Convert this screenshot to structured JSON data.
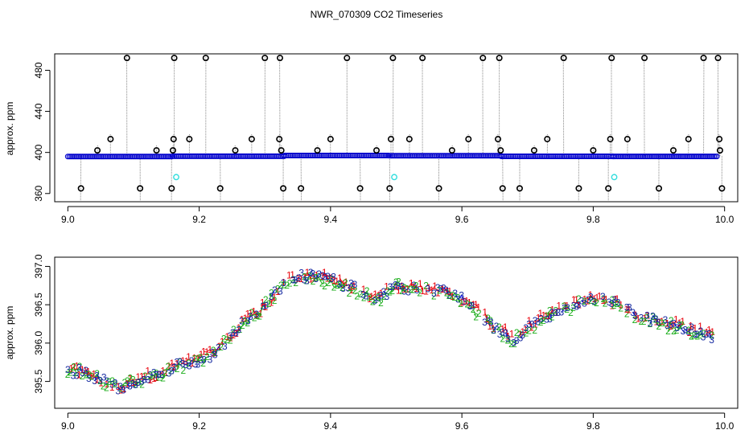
{
  "title": "NWR_070309  CO2 Timeseries",
  "colors": {
    "s1": "#e8000b",
    "s2": "#1aad19",
    "s3": "#1428a0",
    "connect": "#0000ff",
    "raw_line": "#888888",
    "raw_dot": "#0000cc",
    "outlier": "#000000",
    "flagged": "#33dddd"
  },
  "chart_data": [
    {
      "type": "scatter",
      "name": "raw",
      "ylabel": "approx. ppm",
      "xlim": [
        8.98,
        10.02
      ],
      "ylim": [
        352,
        496
      ],
      "xticks": [
        9.0,
        9.2,
        9.4,
        9.6,
        9.8,
        10.0
      ],
      "xtick_labels": [
        "9.0",
        "9.2",
        "9.4",
        "9.6",
        "9.8",
        "10.0"
      ],
      "yticks": [
        360,
        400,
        440,
        480
      ],
      "ytick_labels": [
        "360",
        "400",
        "440",
        "480"
      ],
      "baseline_segments": [
        {
          "x0": 9.0,
          "x1": 9.16,
          "y": 396
        },
        {
          "x0": 9.16,
          "x1": 9.33,
          "y": 396.3
        },
        {
          "x0": 9.33,
          "x1": 9.49,
          "y": 397
        },
        {
          "x0": 9.49,
          "x1": 9.66,
          "y": 396.8
        },
        {
          "x0": 9.66,
          "x1": 9.83,
          "y": 396.2
        },
        {
          "x0": 9.83,
          "x1": 9.99,
          "y": 396.1
        }
      ],
      "outliers": [
        {
          "x": 9.02,
          "y": 365
        },
        {
          "x": 9.045,
          "y": 402
        },
        {
          "x": 9.065,
          "y": 413
        },
        {
          "x": 9.09,
          "y": 492
        },
        {
          "x": 9.11,
          "y": 365
        },
        {
          "x": 9.135,
          "y": 402
        },
        {
          "x": 9.158,
          "y": 365
        },
        {
          "x": 9.16,
          "y": 402
        },
        {
          "x": 9.161,
          "y": 413
        },
        {
          "x": 9.162,
          "y": 492
        },
        {
          "x": 9.185,
          "y": 413
        },
        {
          "x": 9.21,
          "y": 492
        },
        {
          "x": 9.232,
          "y": 365
        },
        {
          "x": 9.255,
          "y": 402
        },
        {
          "x": 9.28,
          "y": 413
        },
        {
          "x": 9.3,
          "y": 492
        },
        {
          "x": 9.322,
          "y": 413
        },
        {
          "x": 9.323,
          "y": 492
        },
        {
          "x": 9.325,
          "y": 402
        },
        {
          "x": 9.328,
          "y": 365
        },
        {
          "x": 9.355,
          "y": 365
        },
        {
          "x": 9.38,
          "y": 402
        },
        {
          "x": 9.4,
          "y": 413
        },
        {
          "x": 9.425,
          "y": 492
        },
        {
          "x": 9.445,
          "y": 365
        },
        {
          "x": 9.47,
          "y": 402
        },
        {
          "x": 9.49,
          "y": 365
        },
        {
          "x": 9.492,
          "y": 413
        },
        {
          "x": 9.495,
          "y": 492
        },
        {
          "x": 9.52,
          "y": 413
        },
        {
          "x": 9.54,
          "y": 492
        },
        {
          "x": 9.565,
          "y": 365
        },
        {
          "x": 9.585,
          "y": 402
        },
        {
          "x": 9.61,
          "y": 413
        },
        {
          "x": 9.632,
          "y": 492
        },
        {
          "x": 9.655,
          "y": 413
        },
        {
          "x": 9.657,
          "y": 492
        },
        {
          "x": 9.659,
          "y": 402
        },
        {
          "x": 9.662,
          "y": 365
        },
        {
          "x": 9.688,
          "y": 365
        },
        {
          "x": 9.71,
          "y": 402
        },
        {
          "x": 9.73,
          "y": 413
        },
        {
          "x": 9.755,
          "y": 492
        },
        {
          "x": 9.778,
          "y": 365
        },
        {
          "x": 9.8,
          "y": 402
        },
        {
          "x": 9.823,
          "y": 365
        },
        {
          "x": 9.826,
          "y": 413
        },
        {
          "x": 9.828,
          "y": 492
        },
        {
          "x": 9.852,
          "y": 413
        },
        {
          "x": 9.878,
          "y": 492
        },
        {
          "x": 9.9,
          "y": 365
        },
        {
          "x": 9.922,
          "y": 402
        },
        {
          "x": 9.945,
          "y": 413
        },
        {
          "x": 9.968,
          "y": 492
        },
        {
          "x": 9.99,
          "y": 492
        },
        {
          "x": 9.992,
          "y": 413
        },
        {
          "x": 9.993,
          "y": 402
        },
        {
          "x": 9.996,
          "y": 365
        }
      ],
      "flagged": [
        {
          "x": 9.165,
          "y": 376
        },
        {
          "x": 9.497,
          "y": 376
        },
        {
          "x": 9.832,
          "y": 376
        }
      ]
    },
    {
      "type": "scatter",
      "name": "smoothed",
      "ylabel": "approx. ppm",
      "xlim": [
        8.98,
        10.02
      ],
      "ylim": [
        395.15,
        397.12
      ],
      "xticks": [
        9.0,
        9.2,
        9.4,
        9.6,
        9.8,
        10.0
      ],
      "xtick_labels": [
        "9.0",
        "9.2",
        "9.4",
        "9.6",
        "9.8",
        "10.0"
      ],
      "yticks": [
        395.5,
        396.0,
        396.5,
        397.0
      ],
      "ytick_labels": [
        "395.5",
        "396.0",
        "396.5",
        "397.0"
      ],
      "marker_labels": [
        "1",
        "2",
        "3"
      ],
      "trend": [
        [
          9.0,
          395.65
        ],
        [
          9.03,
          395.6
        ],
        [
          9.06,
          395.48
        ],
        [
          9.08,
          395.42
        ],
        [
          9.1,
          395.5
        ],
        [
          9.13,
          395.58
        ],
        [
          9.16,
          395.68
        ],
        [
          9.19,
          395.75
        ],
        [
          9.22,
          395.85
        ],
        [
          9.25,
          396.1
        ],
        [
          9.28,
          396.35
        ],
        [
          9.31,
          396.58
        ],
        [
          9.33,
          396.8
        ],
        [
          9.36,
          396.88
        ],
        [
          9.4,
          396.82
        ],
        [
          9.44,
          396.7
        ],
        [
          9.47,
          396.55
        ],
        [
          9.5,
          396.75
        ],
        [
          9.53,
          396.7
        ],
        [
          9.56,
          396.68
        ],
        [
          9.59,
          396.62
        ],
        [
          9.62,
          396.45
        ],
        [
          9.65,
          396.2
        ],
        [
          9.68,
          396.05
        ],
        [
          9.71,
          396.25
        ],
        [
          9.74,
          396.4
        ],
        [
          9.77,
          396.5
        ],
        [
          9.8,
          396.58
        ],
        [
          9.83,
          396.55
        ],
        [
          9.86,
          396.38
        ],
        [
          9.89,
          396.3
        ],
        [
          9.92,
          396.22
        ],
        [
          9.95,
          396.18
        ],
        [
          9.98,
          396.1
        ]
      ]
    }
  ]
}
